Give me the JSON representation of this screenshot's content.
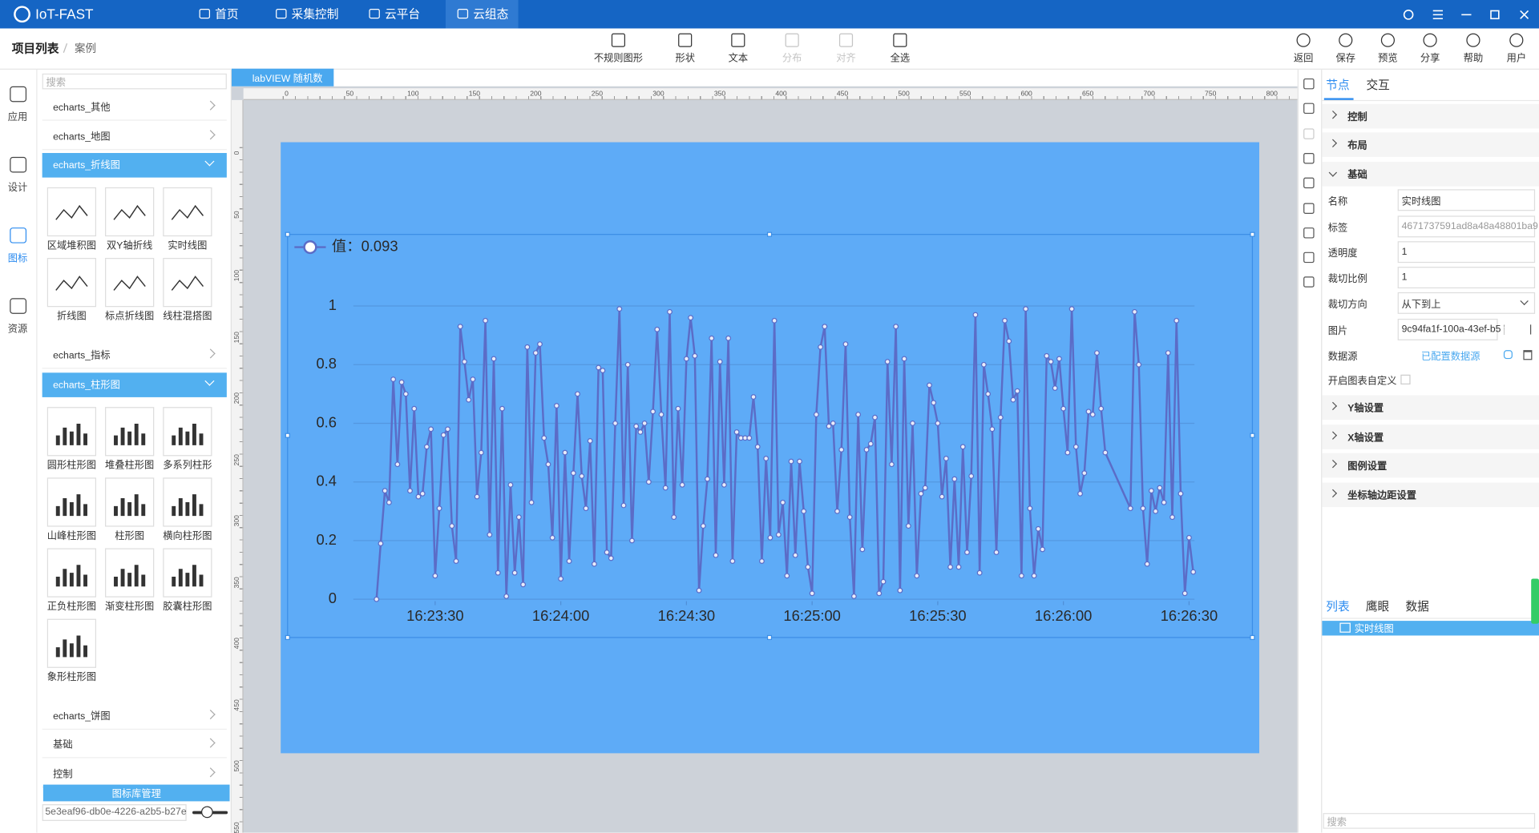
{
  "header": {
    "logo": "IoT-FAST",
    "nav": [
      "首页",
      "采集控制",
      "云平台",
      "云组态"
    ],
    "nav_active": 3
  },
  "breadcrumb": [
    "项目列表",
    "案例"
  ],
  "toolbar": [
    {
      "label": "不规则图形"
    },
    {
      "label": "形状"
    },
    {
      "label": "文本"
    },
    {
      "label": "分布",
      "disabled": true
    },
    {
      "label": "对齐",
      "disabled": true
    },
    {
      "label": "全选"
    }
  ],
  "actions": [
    "返回",
    "保存",
    "预览",
    "分享",
    "帮助",
    "用户"
  ],
  "rail": {
    "items": [
      "应用",
      "设计",
      "图标",
      "资源"
    ],
    "active": 2
  },
  "library": {
    "search": "搜索",
    "groups": [
      {
        "title": "echarts_其他"
      },
      {
        "title": "echarts_地图"
      },
      {
        "title": "echarts_折线图",
        "items": [
          "区域堆积图",
          "双Y轴折线",
          "实时线图",
          "折线图",
          "标点折线图",
          "线柱混搭图"
        ]
      },
      {
        "title": "echarts_指标"
      },
      {
        "title": "echarts_柱形图",
        "items": [
          "圆形柱形图",
          "堆叠柱形图",
          "多系列柱形",
          "山峰柱形图",
          "柱形图",
          "横向柱形图",
          "正负柱形图",
          "渐变柱形图",
          "胶囊柱形图",
          "象形柱形图"
        ]
      },
      {
        "title": "echarts_饼图"
      },
      {
        "title": "基础"
      },
      {
        "title": "控制"
      }
    ],
    "manage": "图标库管理",
    "id": "5e3eaf96-db0e-4226-a2b5-b27e"
  },
  "canvas": {
    "tab": "labVIEW 随机数",
    "ruler_x": [
      0,
      50,
      100,
      150,
      200,
      250,
      300,
      350,
      400,
      450,
      500,
      550,
      600,
      650,
      700,
      750,
      800
    ],
    "ruler_y": [
      0,
      50,
      100,
      150,
      200,
      250,
      300,
      350,
      400,
      450,
      500,
      550
    ]
  },
  "chart_data": {
    "type": "line",
    "grid": true,
    "x": [
      58996,
      58997,
      58998,
      58999,
      59000,
      59001,
      59002,
      59003,
      59004,
      59005,
      59006,
      59007,
      59008,
      59009,
      59010,
      59011,
      59012,
      59013,
      59014,
      59015,
      59016,
      59017,
      59018,
      59019,
      59020,
      59021,
      59022,
      59023,
      59024,
      59025,
      59026,
      59027,
      59028,
      59029,
      59030,
      59031,
      59032,
      59033,
      59034,
      59035,
      59036,
      59037,
      59038,
      59039,
      59040,
      59041,
      59042,
      59043,
      59044,
      59045,
      59046,
      59047,
      59048,
      59049,
      59050,
      59051,
      59052,
      59053,
      59054,
      59055,
      59056,
      59057,
      59058,
      59059,
      59060,
      59061,
      59062,
      59063,
      59064,
      59065,
      59066,
      59067,
      59068,
      59069,
      59070,
      59071,
      59072,
      59073,
      59074,
      59075,
      59076,
      59077,
      59078,
      59079,
      59080,
      59081,
      59082,
      59083,
      59084,
      59085,
      59086,
      59087,
      59088,
      59089,
      59090,
      59091,
      59092,
      59093,
      59094,
      59095,
      59096,
      59097,
      59098,
      59099,
      59100,
      59101,
      59102,
      59103,
      59104,
      59105,
      59106,
      59107,
      59108,
      59109,
      59110,
      59111,
      59112,
      59113,
      59114,
      59115,
      59116,
      59117,
      59118,
      59119,
      59120,
      59121,
      59122,
      59123,
      59124,
      59125,
      59126,
      59127,
      59128,
      59129,
      59130,
      59131,
      59132,
      59133,
      59134,
      59135,
      59136,
      59137,
      59138,
      59139,
      59140,
      59141,
      59142,
      59143,
      59144,
      59145,
      59146,
      59147,
      59148,
      59149,
      59150,
      59151,
      59152,
      59153,
      59154,
      59155,
      59156,
      59157,
      59158,
      59159,
      59160,
      59161,
      59162,
      59163,
      59164,
      59165,
      59166,
      59167,
      59168,
      59169,
      59170,
      59176,
      59177,
      59178,
      59179,
      59180,
      59181,
      59182,
      59183,
      59184,
      59185,
      59186,
      59187,
      59188,
      59189,
      59190,
      59191
    ],
    "series": [
      {
        "name": "值：0.093",
        "color": "#5b6cc7",
        "values": [
          0,
          0.19,
          0.37,
          0.33,
          0.75,
          0.46,
          0.74,
          0.7,
          0.37,
          0.65,
          0.35,
          0.36,
          0.52,
          0.58,
          0.08,
          0.31,
          0.56,
          0.58,
          0.25,
          0.13,
          0.93,
          0.81,
          0.68,
          0.75,
          0.35,
          0.5,
          0.95,
          0.22,
          0.82,
          0.09,
          0.65,
          0.01,
          0.39,
          0.09,
          0.28,
          0.05,
          0.86,
          0.33,
          0.84,
          0.87,
          0.55,
          0.46,
          0.21,
          0.66,
          0.07,
          0.5,
          0.13,
          0.43,
          0.7,
          0.42,
          0.31,
          0.54,
          0.12,
          0.79,
          0.78,
          0.16,
          0.14,
          0.6,
          0.99,
          0.32,
          0.8,
          0.2,
          0.59,
          0.57,
          0.6,
          0.4,
          0.64,
          0.92,
          0.63,
          0.38,
          0.98,
          0.28,
          0.65,
          0.39,
          0.82,
          0.96,
          0.83,
          0.03,
          0.25,
          0.41,
          0.89,
          0.15,
          0.81,
          0.39,
          0.89,
          0.13,
          0.57,
          0.55,
          0.55,
          0.55,
          0.69,
          0.52,
          0.13,
          0.48,
          0.21,
          0.95,
          0.22,
          0.33,
          0.08,
          0.47,
          0.15,
          0.47,
          0.3,
          0.11,
          0.02,
          0.63,
          0.86,
          0.93,
          0.59,
          0.6,
          0.3,
          0.51,
          0.87,
          0.28,
          0.01,
          0.63,
          0.17,
          0.51,
          0.53,
          0.62,
          0.02,
          0.06,
          0.81,
          0.46,
          0.93,
          0.03,
          0.82,
          0.25,
          0.6,
          0.08,
          0.36,
          0.38,
          0.73,
          0.67,
          0.6,
          0.35,
          0.48,
          0.11,
          0.41,
          0.11,
          0.52,
          0.16,
          0.42,
          0.97,
          0.09,
          0.8,
          0.7,
          0.58,
          0.16,
          0.62,
          0.95,
          0.88,
          0.68,
          0.71,
          0.08,
          0.99,
          0.31,
          0.08,
          0.24,
          0.17,
          0.83,
          0.81,
          0.72,
          0.82,
          0.65,
          0.5,
          0.99,
          0.52,
          0.36,
          0.43,
          0.64,
          0.63,
          0.84,
          0.65,
          0.5,
          0.31,
          0.98,
          0.8,
          0.31,
          0.12,
          0.37,
          0.3,
          0.38,
          0.33,
          0.84,
          0.28,
          0.95,
          0.36,
          0.02,
          0.21,
          0.093
        ]
      }
    ],
    "xlim": [
      58990,
      59192
    ],
    "xticks": [
      {
        "value": 59010,
        "label": "16:23:30"
      },
      {
        "value": 59040,
        "label": "16:24:00"
      },
      {
        "value": 59070,
        "label": "16:24:30"
      },
      {
        "value": 59100,
        "label": "16:25:00"
      },
      {
        "value": 59130,
        "label": "16:25:30"
      },
      {
        "value": 59160,
        "label": "16:26:00"
      },
      {
        "value": 59190,
        "label": "16:26:30"
      }
    ],
    "ylim": [
      0,
      1
    ],
    "yticks": [
      0,
      0.2,
      0.4,
      0.6,
      0.8,
      1
    ]
  },
  "inspector": {
    "tabs": [
      "节点",
      "交互"
    ],
    "sections_top": [
      "控制",
      "布局",
      "基础"
    ],
    "fields": [
      {
        "label": "名称",
        "value": "实时线图"
      },
      {
        "label": "标签",
        "value": "4671737591ad8a48a48801ba9"
      },
      {
        "label": "透明度",
        "value": "1"
      },
      {
        "label": "裁切比例",
        "value": "1"
      },
      {
        "label": "裁切方向",
        "value": "从下到上"
      },
      {
        "label": "图片",
        "value": "9c94fa1f-100a-43ef-b5"
      },
      {
        "label": "数据源",
        "value": "已配置数据源"
      },
      {
        "label": "开启图表自定义"
      }
    ],
    "sections_bottom": [
      "Y轴设置",
      "X轴设置",
      "图例设置",
      "坐标轴边距设置"
    ],
    "bottom_tabs": [
      "列表",
      "鹰眼",
      "数据"
    ],
    "list": [
      "实时线图"
    ],
    "search": "搜索"
  }
}
